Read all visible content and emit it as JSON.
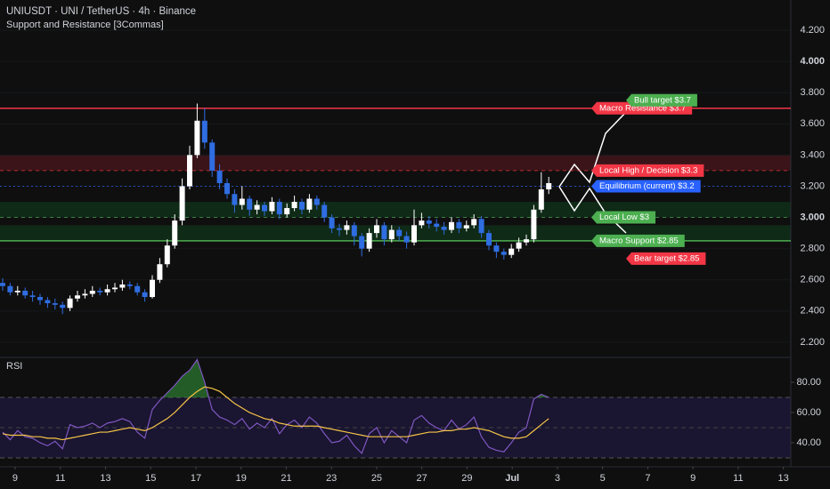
{
  "chart_data": [
    {
      "type": "candlestick",
      "title": "UNIUSDT · UNI / TetherUS · 4h · Binance",
      "subtitle": "Support and Resistance [3Commas]",
      "open": [
        2.58,
        2.56,
        2.52,
        2.53,
        2.5,
        2.49,
        2.47,
        2.45,
        2.44,
        2.42,
        2.48,
        2.5,
        2.51,
        2.53,
        2.52,
        2.54,
        2.55,
        2.57,
        2.56,
        2.52,
        2.49,
        2.6,
        2.7,
        2.82,
        2.98,
        3.2,
        3.4,
        3.62,
        3.48,
        3.3,
        3.22,
        3.15,
        3.08,
        3.12,
        3.05,
        3.08,
        3.04,
        3.1,
        3.02,
        3.06,
        3.1,
        3.05,
        3.12,
        3.08,
        3.0,
        2.93,
        2.92,
        2.95,
        2.88,
        2.8,
        2.9,
        2.95,
        2.86,
        2.92,
        2.88,
        2.84,
        2.95,
        2.98,
        2.96,
        2.94,
        2.92,
        2.97,
        2.93,
        2.95,
        2.99,
        2.9,
        2.82,
        2.78,
        2.76,
        2.8,
        2.84,
        2.86,
        3.05,
        3.18
      ],
      "high": [
        2.61,
        2.58,
        2.56,
        2.55,
        2.53,
        2.51,
        2.49,
        2.48,
        2.46,
        2.5,
        2.53,
        2.54,
        2.56,
        2.55,
        2.57,
        2.58,
        2.6,
        2.59,
        2.58,
        2.54,
        2.63,
        2.74,
        2.86,
        3.02,
        3.25,
        3.46,
        3.73,
        3.7,
        3.5,
        3.34,
        3.25,
        3.18,
        3.2,
        3.14,
        3.11,
        3.1,
        3.13,
        3.12,
        3.09,
        3.14,
        3.12,
        3.15,
        3.14,
        3.1,
        3.02,
        2.96,
        2.98,
        2.97,
        2.9,
        2.93,
        2.99,
        2.97,
        2.95,
        2.94,
        2.91,
        3.05,
        3.03,
        3.01,
        2.99,
        2.97,
        3.0,
        2.99,
        2.98,
        3.02,
        3.01,
        2.92,
        2.84,
        2.8,
        2.83,
        2.87,
        2.89,
        3.08,
        3.29,
        3.26
      ],
      "low": [
        2.53,
        2.5,
        2.5,
        2.48,
        2.46,
        2.44,
        2.42,
        2.41,
        2.38,
        2.4,
        2.46,
        2.48,
        2.49,
        2.5,
        2.5,
        2.52,
        2.53,
        2.54,
        2.5,
        2.46,
        2.48,
        2.58,
        2.68,
        2.8,
        2.95,
        3.18,
        3.38,
        3.44,
        3.26,
        3.18,
        3.12,
        3.03,
        3.05,
        3.01,
        3.02,
        3.01,
        3.02,
        2.99,
        3.0,
        3.04,
        3.02,
        3.03,
        3.05,
        2.97,
        2.9,
        2.88,
        2.89,
        2.82,
        2.75,
        2.78,
        2.87,
        2.82,
        2.84,
        2.85,
        2.8,
        2.82,
        2.93,
        2.93,
        2.91,
        2.89,
        2.9,
        2.9,
        2.91,
        2.93,
        2.87,
        2.79,
        2.74,
        2.73,
        2.74,
        2.78,
        2.82,
        2.84,
        3.03,
        3.15
      ],
      "close": [
        2.56,
        2.52,
        2.53,
        2.5,
        2.49,
        2.47,
        2.45,
        2.44,
        2.42,
        2.48,
        2.5,
        2.51,
        2.53,
        2.52,
        2.54,
        2.55,
        2.57,
        2.56,
        2.52,
        2.49,
        2.6,
        2.7,
        2.82,
        2.98,
        3.2,
        3.4,
        3.62,
        3.48,
        3.3,
        3.22,
        3.15,
        3.08,
        3.12,
        3.05,
        3.08,
        3.04,
        3.1,
        3.02,
        3.06,
        3.1,
        3.05,
        3.12,
        3.08,
        3.0,
        2.93,
        2.92,
        2.95,
        2.88,
        2.8,
        2.9,
        2.95,
        2.86,
        2.92,
        2.88,
        2.84,
        2.95,
        2.98,
        2.96,
        2.94,
        2.92,
        2.97,
        2.93,
        2.95,
        2.99,
        2.9,
        2.82,
        2.78,
        2.76,
        2.8,
        2.84,
        2.86,
        3.05,
        3.18,
        3.22
      ],
      "up_color": "#ffffff",
      "down_color": "#2f6de1",
      "ylim": [
        2.114,
        4.394
      ],
      "yticks": [
        {
          "value": 4.2,
          "label": "4.200"
        },
        {
          "value": 4.0,
          "label": "4.000"
        },
        {
          "value": 3.8,
          "label": "3.800"
        },
        {
          "value": 3.6,
          "label": "3.600"
        },
        {
          "value": 3.4,
          "label": "3.400"
        },
        {
          "value": 3.2,
          "label": "3.200"
        },
        {
          "value": 3.0,
          "label": "3.000"
        },
        {
          "value": 2.8,
          "label": "2.800"
        },
        {
          "value": 2.6,
          "label": "2.600"
        },
        {
          "value": 2.4,
          "label": "2.400"
        },
        {
          "value": 2.2,
          "label": "2.200"
        }
      ],
      "xlim": [
        -0.67,
        34.33
      ],
      "xticks": [
        {
          "value": 0,
          "label": "9"
        },
        {
          "value": 2,
          "label": "11"
        },
        {
          "value": 4,
          "label": "13"
        },
        {
          "value": 6,
          "label": "15"
        },
        {
          "value": 8,
          "label": "17"
        },
        {
          "value": 10,
          "label": "19"
        },
        {
          "value": 12,
          "label": "21"
        },
        {
          "value": 14,
          "label": "23"
        },
        {
          "value": 16,
          "label": "25"
        },
        {
          "value": 18,
          "label": "27"
        },
        {
          "value": 20,
          "label": "29"
        },
        {
          "value": 22,
          "label": "Jul"
        },
        {
          "value": 24,
          "label": "3"
        },
        {
          "value": 26,
          "label": "5"
        },
        {
          "value": 28,
          "label": "7"
        },
        {
          "value": 30,
          "label": "9"
        },
        {
          "value": 32,
          "label": "11"
        },
        {
          "value": 34,
          "label": "13"
        }
      ],
      "zones": [
        {
          "from": 3.3,
          "to": 3.4,
          "color": "#3a1418"
        },
        {
          "from": 3.0,
          "to": 3.1,
          "color": "#0f2a17"
        },
        {
          "from": 2.85,
          "to": 2.95,
          "color": "#0f2a17"
        }
      ],
      "levels": [
        {
          "label": "Macro Resistance $3.7",
          "value": 3.7,
          "color": "#f23645",
          "style": "solid"
        },
        {
          "label": "Local High / Decision $3.3",
          "value": 3.3,
          "color": "#f23645",
          "style": "dashed"
        },
        {
          "label": "Equilibrium (current) $3.2",
          "value": 3.2,
          "color": "#2962ff",
          "style": "dotted"
        },
        {
          "label": "Local Low $3",
          "value": 3.0,
          "color": "#4caf50",
          "style": "dashed"
        },
        {
          "label": "Macro Support $2.85",
          "value": 2.85,
          "color": "#4caf50",
          "style": "solid"
        }
      ],
      "targets": [
        {
          "label": "Bull target $3.7",
          "value": 3.7,
          "color": "#4caf50"
        },
        {
          "label": "Bear target $2.85",
          "value": 2.85,
          "color": "#f23645"
        }
      ]
    },
    {
      "type": "line",
      "title": "RSI",
      "series": [
        {
          "color": "#7e57c2",
          "values": [
            47,
            42,
            48,
            44,
            43,
            40,
            38,
            41,
            36,
            52,
            50,
            51,
            53,
            50,
            53,
            54,
            56,
            54,
            47,
            43,
            62,
            68,
            73,
            78,
            84,
            88,
            95,
            80,
            62,
            57,
            55,
            52,
            56,
            49,
            53,
            50,
            56,
            46,
            52,
            55,
            50,
            57,
            53,
            46,
            40,
            41,
            45,
            38,
            33,
            46,
            50,
            40,
            48,
            44,
            40,
            55,
            58,
            53,
            50,
            48,
            55,
            49,
            52,
            57,
            44,
            37,
            35,
            34,
            40,
            47,
            50,
            69,
            72,
            70
          ]
        },
        {
          "color": "#f7c548",
          "values": [
            46,
            45,
            45,
            45,
            44,
            44,
            43,
            43,
            42,
            43,
            44,
            45,
            46,
            47,
            47,
            48,
            49,
            50,
            49,
            48,
            50,
            53,
            56,
            60,
            65,
            70,
            74,
            77,
            76,
            74,
            70,
            66,
            63,
            60,
            58,
            56,
            55,
            53,
            52,
            51,
            51,
            51,
            51,
            50,
            49,
            48,
            47,
            46,
            45,
            44,
            44,
            44,
            44,
            44,
            44,
            45,
            46,
            47,
            47,
            48,
            48,
            49,
            49,
            50,
            49,
            48,
            46,
            44,
            43,
            43,
            44,
            48,
            52,
            56
          ]
        }
      ],
      "ylim": [
        24.1,
        94.7
      ],
      "yticks": [
        {
          "value": 80,
          "label": "80.00"
        },
        {
          "value": 60,
          "label": "60.00"
        },
        {
          "value": 40,
          "label": "40.00"
        }
      ],
      "band": [
        30,
        70
      ],
      "midline": 50
    }
  ]
}
